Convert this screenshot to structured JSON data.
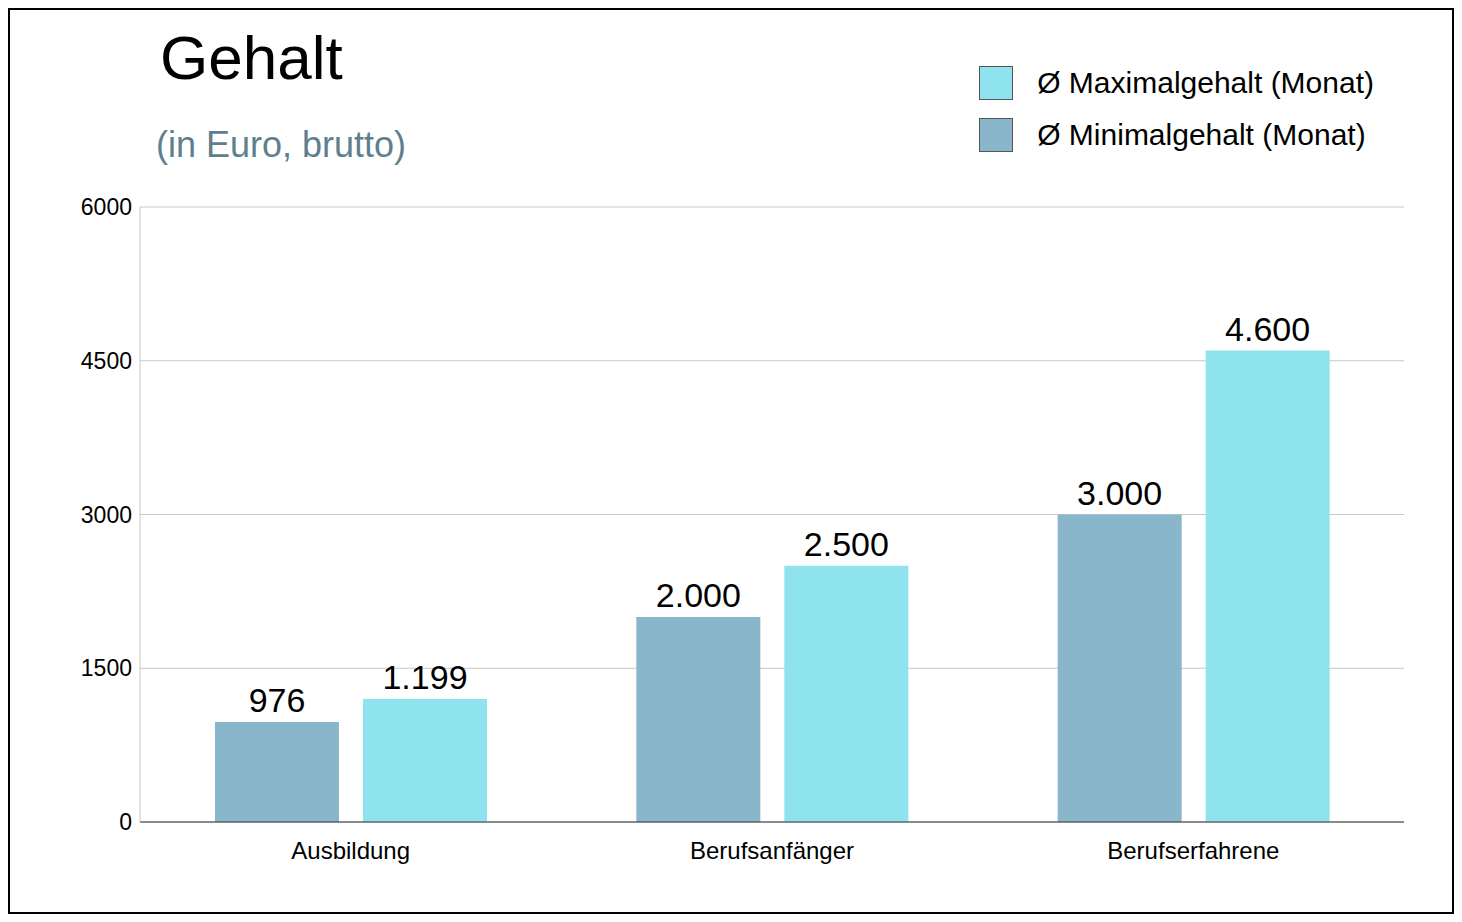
{
  "chart_data": {
    "type": "bar",
    "title": "Gehalt",
    "subtitle": "(in Euro, brutto)",
    "categories": [
      "Ausbildung",
      "Berufsanfänger",
      "Berufserfahrene"
    ],
    "series": [
      {
        "name": "Ø Minimalgehalt (Monat)",
        "color": "#8ab6cb",
        "values": [
          976,
          2000,
          3000
        ],
        "value_labels": [
          "976",
          "2.000",
          "3.000"
        ]
      },
      {
        "name": "Ø Maximalgehalt (Monat)",
        "color": "#8ee3ef",
        "values": [
          1199,
          2500,
          4600
        ],
        "value_labels": [
          "1.199",
          "2.500",
          "4.600"
        ]
      }
    ],
    "ylim": [
      0,
      6000
    ],
    "yticks": [
      0,
      1500,
      3000,
      4500,
      6000
    ],
    "grid": true,
    "data_labels": true,
    "legend": "top-right"
  }
}
